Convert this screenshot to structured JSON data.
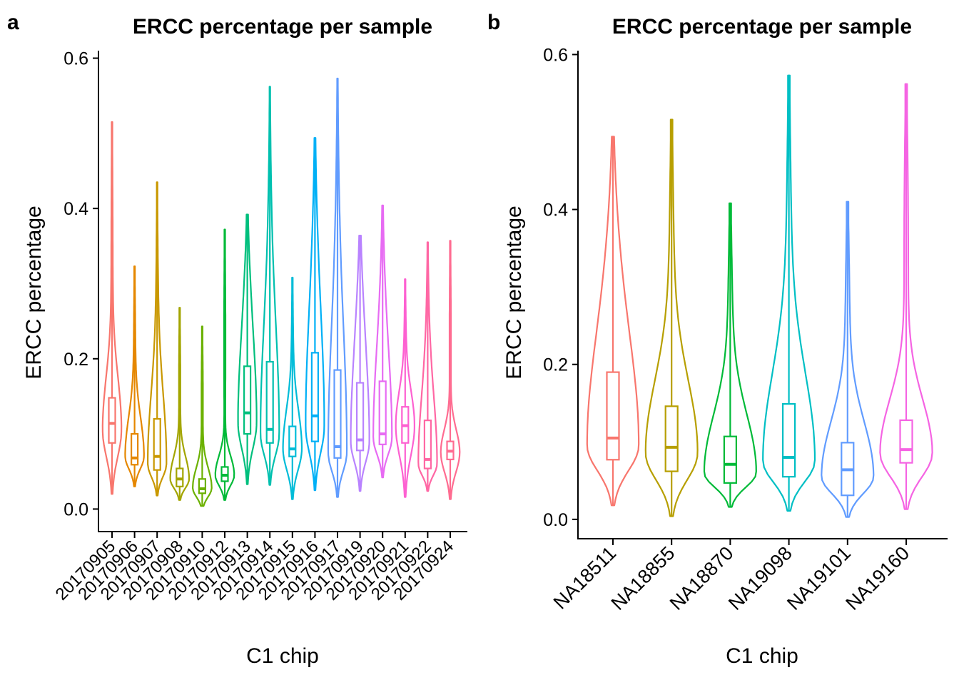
{
  "chart_data": [
    {
      "panel": "a",
      "type": "violin",
      "title": "ERCC percentage per sample",
      "xlabel": "C1 chip",
      "ylabel": "ERCC percentage",
      "ylim": [
        -0.03,
        0.61
      ],
      "yticks": [
        0.0,
        0.2,
        0.4,
        0.6
      ],
      "ytick_labels": [
        "0.0",
        "0.2",
        "0.4",
        "0.6"
      ],
      "grid": false,
      "legend": "none",
      "categories": [
        "20170905",
        "20170906",
        "20170907",
        "20170908",
        "20170910",
        "20170912",
        "20170913",
        "20170914",
        "20170915",
        "20170916",
        "20170917",
        "20170919",
        "20170920",
        "20170921",
        "20170922",
        "20170924"
      ],
      "colors": [
        "#F8766D",
        "#E58700",
        "#C99800",
        "#A3A500",
        "#6BB100",
        "#00BA38",
        "#00BF7D",
        "#00C0AF",
        "#00BCD8",
        "#00B0F6",
        "#619CFF",
        "#B983FF",
        "#E76BF3",
        "#FD61D1",
        "#FF67A4",
        "#FF6C91"
      ],
      "groups": [
        {
          "min": 0.02,
          "max": 0.515,
          "q1": 0.088,
          "median": 0.114,
          "q3": 0.148,
          "peak": 0.105
        },
        {
          "min": 0.03,
          "max": 0.323,
          "q1": 0.059,
          "median": 0.068,
          "q3": 0.1,
          "peak": 0.07
        },
        {
          "min": 0.018,
          "max": 0.435,
          "q1": 0.052,
          "median": 0.07,
          "q3": 0.12,
          "peak": 0.06
        },
        {
          "min": 0.012,
          "max": 0.268,
          "q1": 0.03,
          "median": 0.04,
          "q3": 0.054,
          "peak": 0.04
        },
        {
          "min": 0.004,
          "max": 0.243,
          "q1": 0.021,
          "median": 0.027,
          "q3": 0.04,
          "peak": 0.028
        },
        {
          "min": 0.012,
          "max": 0.372,
          "q1": 0.037,
          "median": 0.045,
          "q3": 0.056,
          "peak": 0.045
        },
        {
          "min": 0.033,
          "max": 0.392,
          "q1": 0.1,
          "median": 0.128,
          "q3": 0.19,
          "peak": 0.115
        },
        {
          "min": 0.032,
          "max": 0.562,
          "q1": 0.088,
          "median": 0.106,
          "q3": 0.196,
          "peak": 0.1
        },
        {
          "min": 0.013,
          "max": 0.308,
          "q1": 0.07,
          "median": 0.08,
          "q3": 0.11,
          "peak": 0.08
        },
        {
          "min": 0.025,
          "max": 0.494,
          "q1": 0.09,
          "median": 0.124,
          "q3": 0.208,
          "peak": 0.11
        },
        {
          "min": 0.016,
          "max": 0.573,
          "q1": 0.068,
          "median": 0.083,
          "q3": 0.185,
          "peak": 0.075
        },
        {
          "min": 0.024,
          "max": 0.364,
          "q1": 0.078,
          "median": 0.092,
          "q3": 0.168,
          "peak": 0.09
        },
        {
          "min": 0.042,
          "max": 0.404,
          "q1": 0.086,
          "median": 0.1,
          "q3": 0.17,
          "peak": 0.095
        },
        {
          "min": 0.016,
          "max": 0.306,
          "q1": 0.088,
          "median": 0.111,
          "q3": 0.136,
          "peak": 0.11
        },
        {
          "min": 0.024,
          "max": 0.355,
          "q1": 0.054,
          "median": 0.066,
          "q3": 0.118,
          "peak": 0.06
        },
        {
          "min": 0.013,
          "max": 0.357,
          "q1": 0.066,
          "median": 0.077,
          "q3": 0.09,
          "peak": 0.075
        }
      ]
    },
    {
      "panel": "b",
      "type": "violin",
      "title": "ERCC percentage per sample",
      "xlabel": "C1 chip",
      "ylabel": "ERCC percentage",
      "ylim": [
        -0.025,
        0.605
      ],
      "yticks": [
        0.0,
        0.2,
        0.4,
        0.6
      ],
      "ytick_labels": [
        "0.0",
        "0.2",
        "0.4",
        "0.6"
      ],
      "grid": false,
      "legend": "none",
      "categories": [
        "NA18511",
        "NA18855",
        "NA18870",
        "NA19098",
        "NA19101",
        "NA19160"
      ],
      "colors": [
        "#F8766D",
        "#B79F00",
        "#00BA38",
        "#00BFC4",
        "#619CFF",
        "#F564E3"
      ],
      "groups": [
        {
          "min": 0.018,
          "max": 0.494,
          "q1": 0.077,
          "median": 0.105,
          "q3": 0.19,
          "peak": 0.095
        },
        {
          "min": 0.004,
          "max": 0.516,
          "q1": 0.062,
          "median": 0.093,
          "q3": 0.146,
          "peak": 0.085
        },
        {
          "min": 0.016,
          "max": 0.408,
          "q1": 0.047,
          "median": 0.071,
          "q3": 0.107,
          "peak": 0.06
        },
        {
          "min": 0.011,
          "max": 0.573,
          "q1": 0.055,
          "median": 0.08,
          "q3": 0.149,
          "peak": 0.075
        },
        {
          "min": 0.003,
          "max": 0.41,
          "q1": 0.031,
          "median": 0.064,
          "q3": 0.099,
          "peak": 0.055
        },
        {
          "min": 0.013,
          "max": 0.562,
          "q1": 0.073,
          "median": 0.09,
          "q3": 0.128,
          "peak": 0.085
        }
      ]
    }
  ],
  "panel_labels": [
    "a",
    "b"
  ]
}
